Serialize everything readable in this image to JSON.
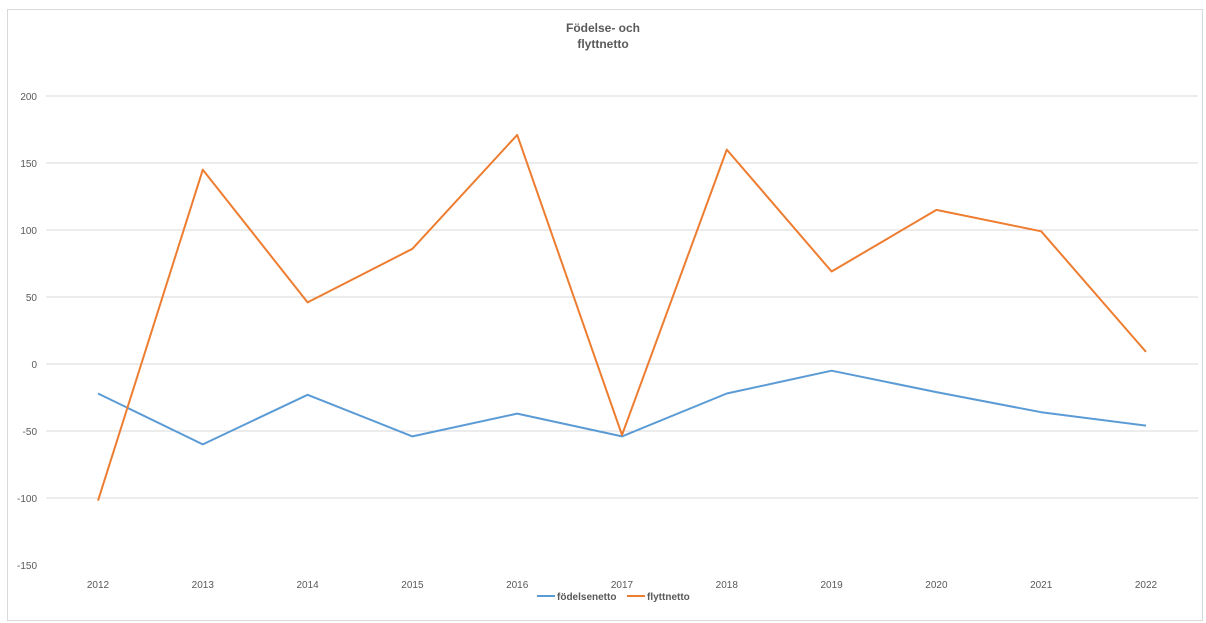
{
  "chart_data": {
    "type": "line",
    "title_lines": [
      "Födelse- och",
      "flyttnetto"
    ],
    "categories": [
      "2012",
      "2013",
      "2014",
      "2015",
      "2016",
      "2017",
      "2018",
      "2019",
      "2020",
      "2021",
      "2022"
    ],
    "series": [
      {
        "name": "födelsenetto",
        "color": "#5b9bd5",
        "values": [
          -22,
          -60,
          -23,
          -54,
          -37,
          -54,
          -22,
          -5,
          -21,
          -36,
          -46
        ]
      },
      {
        "name": "flyttnetto",
        "color": "#ed7d31",
        "values": [
          -102,
          145,
          46,
          86,
          171,
          -53,
          160,
          69,
          115,
          99,
          9
        ]
      }
    ],
    "ylim": [
      -150,
      200
    ],
    "yticks": [
      "200",
      "150",
      "100",
      "50",
      "0",
      "-50",
      "-100",
      "-150"
    ],
    "ytick_values": [
      200,
      150,
      100,
      50,
      0,
      -50,
      -100,
      -150
    ],
    "grid": true,
    "legend_position": "bottom"
  }
}
